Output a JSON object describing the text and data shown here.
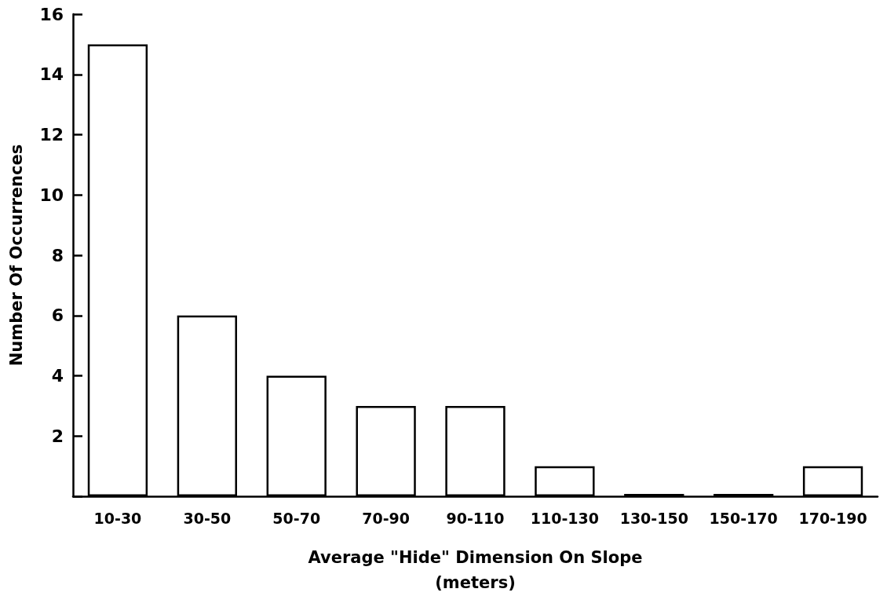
{
  "chart_data": {
    "type": "bar",
    "xlabel": "Average \"Hide\" Dimension On Slope\n(meters)",
    "ylabel": "Number Of Occurrences",
    "categories": [
      "10-30",
      "30-50",
      "50-70",
      "70-90",
      "90-110",
      "110-130",
      "130-150",
      "150-170",
      "170-190"
    ],
    "values": [
      15,
      6,
      4,
      3,
      3,
      1,
      0,
      0,
      1
    ],
    "color": "#ffffff",
    "ylim": [
      0,
      16
    ],
    "yticks": [
      {
        "value": 0,
        "label": null
      },
      2,
      4,
      6,
      8,
      10,
      12,
      14,
      16
    ],
    "grid": false
  }
}
